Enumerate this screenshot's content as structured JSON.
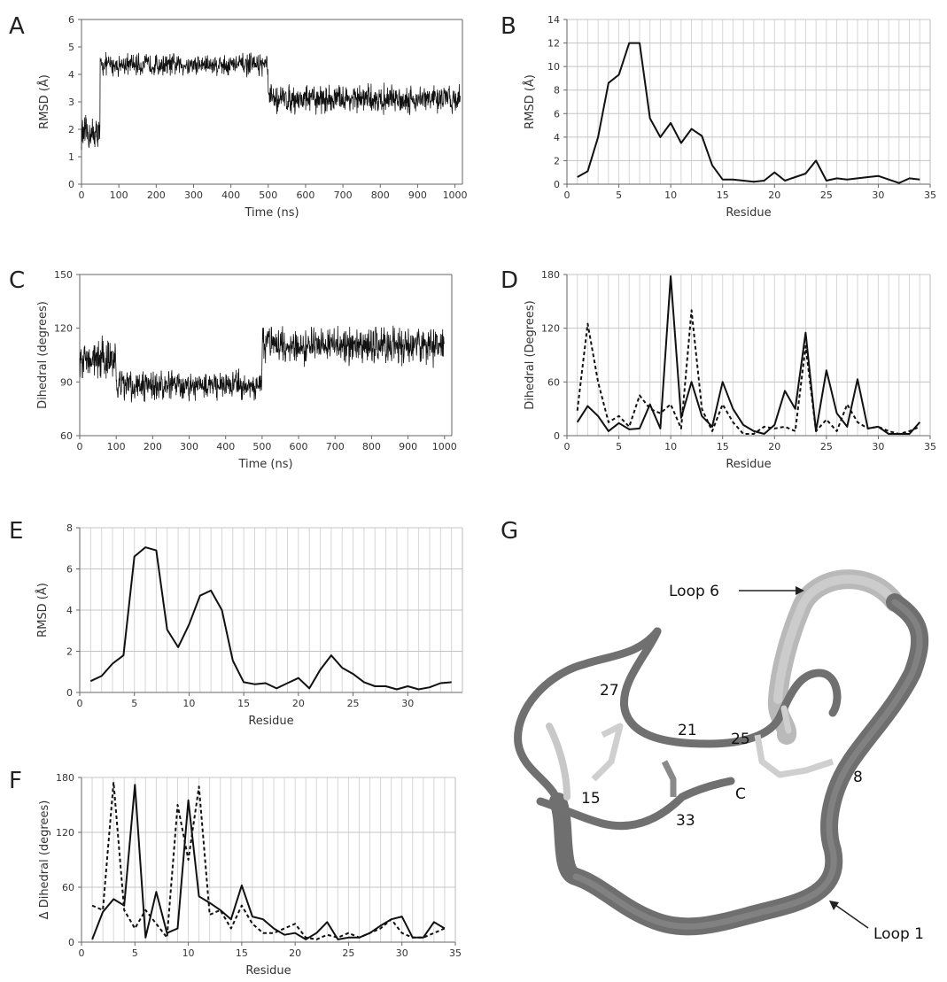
{
  "panels": {
    "A": {
      "letter": "A",
      "type": "line",
      "xlabel": "Time (ns)",
      "ylabel": "RMSD (Å)",
      "xticks": [
        0,
        100,
        200,
        300,
        400,
        500,
        600,
        700,
        800,
        900,
        1000
      ],
      "yticks": [
        0,
        1,
        2,
        3,
        4,
        5,
        6
      ],
      "xlim": [
        0,
        1020
      ],
      "ylim": [
        0,
        6
      ],
      "grid": false,
      "segments": [
        {
          "x0": 0,
          "x1": 50,
          "mean": 1.8,
          "noise": 0.55,
          "n": 70
        },
        {
          "x0": 50,
          "x1": 500,
          "mean": 4.35,
          "noise": 0.35,
          "n": 520
        },
        {
          "x0": 500,
          "x1": 1015,
          "mean": 3.1,
          "noise": 0.45,
          "n": 600
        }
      ]
    },
    "B": {
      "letter": "B",
      "type": "line",
      "xlabel": "Residue",
      "ylabel": "RMSD (Å)",
      "xticks": [
        0,
        5,
        10,
        15,
        20,
        25,
        30,
        35
      ],
      "yticks": [
        0,
        2,
        4,
        6,
        8,
        10,
        12,
        14
      ],
      "xlim": [
        0,
        35
      ],
      "ylim": [
        0,
        14
      ],
      "grid": true
    },
    "C": {
      "letter": "C",
      "type": "line",
      "xlabel": "Time (ns)",
      "ylabel": "Dihedral (degrees)",
      "xticks": [
        0,
        100,
        200,
        300,
        400,
        500,
        600,
        700,
        800,
        900,
        1000
      ],
      "yticks": [
        60,
        90,
        120,
        150
      ],
      "xlim": [
        0,
        1020
      ],
      "ylim": [
        60,
        150
      ],
      "grid": false,
      "segments": [
        {
          "x0": 0,
          "x1": 100,
          "mean": 103,
          "noise": 10,
          "n": 130
        },
        {
          "x0": 100,
          "x1": 500,
          "mean": 88,
          "noise": 7,
          "n": 480
        },
        {
          "x0": 500,
          "x1": 1000,
          "mean": 110,
          "noise": 9,
          "n": 600
        }
      ]
    },
    "D": {
      "letter": "D",
      "type": "line",
      "xlabel": "Residue",
      "ylabel": "Dihedral (Degrees)",
      "xticks": [
        0,
        5,
        10,
        15,
        20,
        25,
        30,
        35
      ],
      "yticks": [
        0,
        60,
        120,
        180
      ],
      "xlim": [
        0,
        35
      ],
      "ylim": [
        0,
        180
      ],
      "grid": true
    },
    "E": {
      "letter": "E",
      "type": "line",
      "xlabel": "Residue",
      "ylabel": "RMSD (Å)",
      "xticks": [
        0,
        5,
        10,
        15,
        20,
        25,
        30
      ],
      "yticks": [
        0,
        2,
        4,
        6,
        8
      ],
      "xlim": [
        0,
        35
      ],
      "ylim": [
        0,
        8
      ],
      "grid": true
    },
    "F": {
      "letter": "F",
      "type": "line",
      "xlabel": "Residue",
      "ylabel": "Δ Dihedral (degrees)",
      "xticks": [
        0,
        5,
        10,
        15,
        20,
        25,
        30,
        35
      ],
      "yticks": [
        0,
        60,
        120,
        180
      ],
      "xlim": [
        0,
        35
      ],
      "ylim": [
        0,
        180
      ],
      "grid": true
    },
    "G": {
      "letter": "G",
      "labels": {
        "loop6": "Loop 6",
        "loop1": "Loop 1",
        "r27": "27",
        "r21": "21",
        "r25": "25",
        "r8": "8",
        "r15": "15",
        "r33": "33",
        "c": "C"
      }
    }
  },
  "chart_data": [
    {
      "panel": "B",
      "type": "line",
      "xlabel": "Residue",
      "ylabel": "RMSD (Å)",
      "xlim": [
        0,
        35
      ],
      "ylim": [
        0,
        14
      ],
      "series": [
        {
          "style": "solid",
          "x": [
            1,
            2,
            3,
            4,
            5,
            6,
            7,
            8,
            9,
            10,
            11,
            12,
            13,
            14,
            15,
            16,
            17,
            18,
            19,
            20,
            21,
            22,
            23,
            24,
            25,
            26,
            27,
            28,
            29,
            30,
            31,
            32,
            33,
            34
          ],
          "y": [
            0.6,
            1.1,
            4.0,
            8.6,
            9.3,
            12.0,
            12.0,
            5.6,
            4.0,
            5.2,
            3.5,
            4.7,
            4.1,
            1.6,
            0.4,
            0.4,
            0.3,
            0.2,
            0.3,
            1.0,
            0.3,
            0.6,
            0.9,
            2.0,
            0.3,
            0.5,
            0.4,
            0.5,
            0.6,
            0.7,
            0.4,
            0.1,
            0.5,
            0.4
          ]
        }
      ]
    },
    {
      "panel": "D",
      "type": "line",
      "xlabel": "Residue",
      "ylabel": "Dihedral (Degrees)",
      "xlim": [
        0,
        35
      ],
      "ylim": [
        0,
        180
      ],
      "series": [
        {
          "style": "solid",
          "x": [
            1,
            2,
            3,
            4,
            5,
            6,
            7,
            8,
            9,
            10,
            11,
            12,
            13,
            14,
            15,
            16,
            17,
            18,
            19,
            20,
            21,
            22,
            23,
            24,
            25,
            26,
            27,
            28,
            29,
            30,
            31,
            32,
            33,
            34
          ],
          "y": [
            15,
            33,
            22,
            5,
            14,
            7,
            8,
            35,
            8,
            178,
            20,
            60,
            22,
            10,
            60,
            30,
            12,
            5,
            2,
            12,
            50,
            30,
            115,
            5,
            73,
            25,
            10,
            63,
            8,
            10,
            2,
            2,
            2,
            15
          ]
        },
        {
          "style": "dashed",
          "x": [
            1,
            2,
            3,
            4,
            5,
            6,
            7,
            8,
            9,
            10,
            11,
            12,
            13,
            14,
            15,
            16,
            17,
            18,
            19,
            20,
            21,
            22,
            23,
            24,
            25,
            26,
            27,
            28,
            29,
            30,
            31,
            32,
            33,
            34
          ],
          "y": [
            28,
            125,
            60,
            15,
            22,
            10,
            45,
            30,
            25,
            35,
            8,
            140,
            30,
            5,
            35,
            15,
            2,
            2,
            10,
            8,
            10,
            5,
            100,
            5,
            18,
            5,
            35,
            15,
            8,
            10,
            5,
            2,
            5,
            10
          ]
        }
      ]
    },
    {
      "panel": "E",
      "type": "line",
      "xlabel": "Residue",
      "ylabel": "RMSD (Å)",
      "xlim": [
        0,
        35
      ],
      "ylim": [
        0,
        8
      ],
      "series": [
        {
          "style": "solid",
          "x": [
            1,
            2,
            3,
            4,
            5,
            6,
            7,
            8,
            9,
            10,
            11,
            12,
            13,
            14,
            15,
            16,
            17,
            18,
            19,
            20,
            21,
            22,
            23,
            24,
            25,
            26,
            27,
            28,
            29,
            30,
            31,
            32,
            33,
            34
          ],
          "y": [
            0.55,
            0.8,
            1.4,
            1.8,
            6.6,
            7.05,
            6.9,
            3.05,
            2.2,
            3.3,
            4.7,
            4.95,
            4.0,
            1.55,
            0.5,
            0.4,
            0.45,
            0.2,
            0.45,
            0.7,
            0.2,
            1.1,
            1.8,
            1.2,
            0.9,
            0.5,
            0.3,
            0.3,
            0.15,
            0.3,
            0.15,
            0.25,
            0.45,
            0.5
          ]
        }
      ]
    },
    {
      "panel": "F",
      "type": "line",
      "xlabel": "Residue",
      "ylabel": "Δ Dihedral (degrees)",
      "xlim": [
        0,
        35
      ],
      "ylim": [
        0,
        180
      ],
      "series": [
        {
          "style": "solid",
          "x": [
            1,
            2,
            3,
            4,
            5,
            6,
            7,
            8,
            9,
            10,
            11,
            12,
            13,
            14,
            15,
            16,
            17,
            18,
            19,
            20,
            21,
            22,
            23,
            24,
            25,
            26,
            27,
            28,
            29,
            30,
            31,
            32,
            33,
            34
          ],
          "y": [
            3,
            33,
            47,
            40,
            172,
            5,
            55,
            10,
            15,
            155,
            50,
            43,
            35,
            25,
            62,
            28,
            25,
            15,
            8,
            10,
            3,
            10,
            22,
            3,
            5,
            5,
            10,
            18,
            25,
            28,
            5,
            5,
            22,
            15
          ]
        },
        {
          "style": "dashed",
          "x": [
            1,
            2,
            3,
            4,
            5,
            6,
            7,
            8,
            9,
            10,
            11,
            12,
            13,
            14,
            15,
            16,
            17,
            18,
            19,
            20,
            21,
            22,
            23,
            24,
            25,
            26,
            27,
            28,
            29,
            30,
            31,
            32,
            33,
            34
          ],
          "y": [
            40,
            35,
            175,
            35,
            15,
            35,
            20,
            5,
            150,
            90,
            170,
            30,
            35,
            15,
            40,
            20,
            10,
            10,
            15,
            20,
            5,
            3,
            8,
            5,
            10,
            5,
            10,
            15,
            25,
            10,
            5,
            5,
            10,
            15
          ]
        }
      ]
    },
    {
      "panel": "A",
      "type": "line",
      "note": "dense MD time series",
      "xlabel": "Time (ns)",
      "ylabel": "RMSD (Å)",
      "xlim": [
        0,
        1020
      ],
      "ylim": [
        0,
        6
      ]
    },
    {
      "panel": "C",
      "type": "line",
      "note": "dense MD time series",
      "xlabel": "Time (ns)",
      "ylabel": "Dihedral (degrees)",
      "xlim": [
        0,
        1020
      ],
      "ylim": [
        60,
        150
      ]
    }
  ]
}
